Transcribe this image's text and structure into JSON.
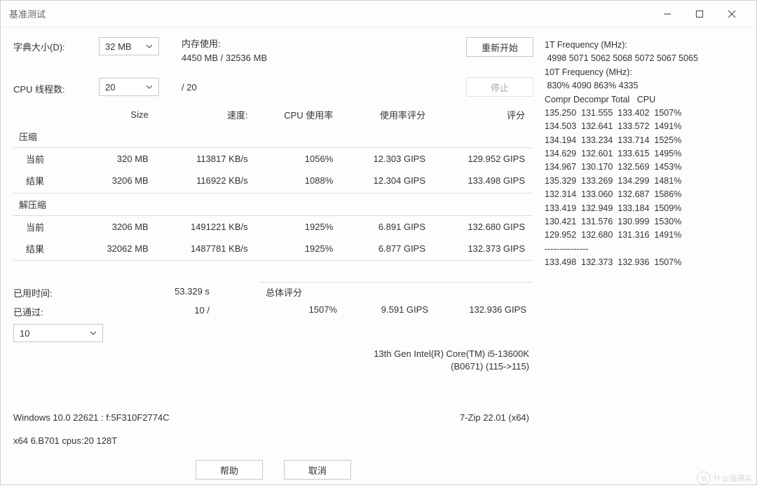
{
  "window": {
    "title": "基准测试"
  },
  "controls": {
    "dict_label": "字典大小(D):",
    "dict_value": "32 MB",
    "mem_label": "内存使用:",
    "mem_value": "4450 MB / 32536 MB",
    "restart": "重新开始",
    "threads_label": "CPU 线程数:",
    "threads_value": "20",
    "threads_suffix": "/ 20",
    "stop": "停止"
  },
  "table": {
    "headers": {
      "size": "Size",
      "speed": "速度:",
      "cpu": "CPU 使用率",
      "rating": "使用率评分",
      "total": "评分"
    },
    "compress": {
      "title": "压缩",
      "current_label": "当前",
      "result_label": "结果",
      "current": {
        "size": "320 MB",
        "speed": "113817 KB/s",
        "cpu": "1056%",
        "rating": "12.303 GIPS",
        "total": "129.952 GIPS"
      },
      "result": {
        "size": "3206 MB",
        "speed": "116922 KB/s",
        "cpu": "1088%",
        "rating": "12.304 GIPS",
        "total": "133.498 GIPS"
      }
    },
    "decompress": {
      "title": "解压缩",
      "current_label": "当前",
      "result_label": "结果",
      "current": {
        "size": "3206 MB",
        "speed": "1491221 KB/s",
        "cpu": "1925%",
        "rating": "6.891 GIPS",
        "total": "132.680 GIPS"
      },
      "result": {
        "size": "32062 MB",
        "speed": "1487781 KB/s",
        "cpu": "1925%",
        "rating": "6.877 GIPS",
        "total": "132.373 GIPS"
      }
    }
  },
  "elapsed": {
    "time_label": "已用时间:",
    "time_value": "53.329 s",
    "passes_label": "已通过:",
    "passes_value": "10 /",
    "passes_target": "10"
  },
  "overall": {
    "title": "总体评分",
    "cpu": "1507%",
    "rating": "9.591 GIPS",
    "total": "132.936 GIPS"
  },
  "cpu_model": {
    "line1": "13th Gen Intel(R) Core(TM) i5-13600K",
    "line2": "(B0671) (115->115)"
  },
  "footer": {
    "os": "Windows 10.0 22621 :  f:5F310F2774C",
    "app": "7-Zip 22.01 (x64)",
    "arch": "x64 6.B701 cpus:20 128T",
    "help": "帮助",
    "cancel": "取消"
  },
  "right": {
    "freq1_label": "1T Frequency (MHz):",
    "freq1_values": " 4998 5071 5062 5068 5072 5067 5065",
    "freq10_label": "10T Frequency (MHz):",
    "freq10_values": " 830% 4090 863% 4335",
    "table_header": "Compr Decompr Total   CPU",
    "rows": [
      "135.250  131.555  133.402  1507%",
      "134.503  132.641  133.572  1491%",
      "134.194  133.234  133.714  1525%",
      "134.629  132.601  133.615  1495%",
      "134.967  130.170  132.569  1453%",
      "135.329  133.269  134.299  1481%",
      "132.314  133.060  132.687  1586%",
      "133.419  132.949  133.184  1509%",
      "130.421  131.576  130.999  1530%",
      "129.952  132.680  131.316  1491%"
    ],
    "separator": "---------------",
    "summary": "133.498  132.373  132.936  1507%"
  },
  "watermark": "什么值得买",
  "colors": {
    "border": "#d0d0d0",
    "text": "#333333",
    "muted": "#aaaaaa"
  }
}
